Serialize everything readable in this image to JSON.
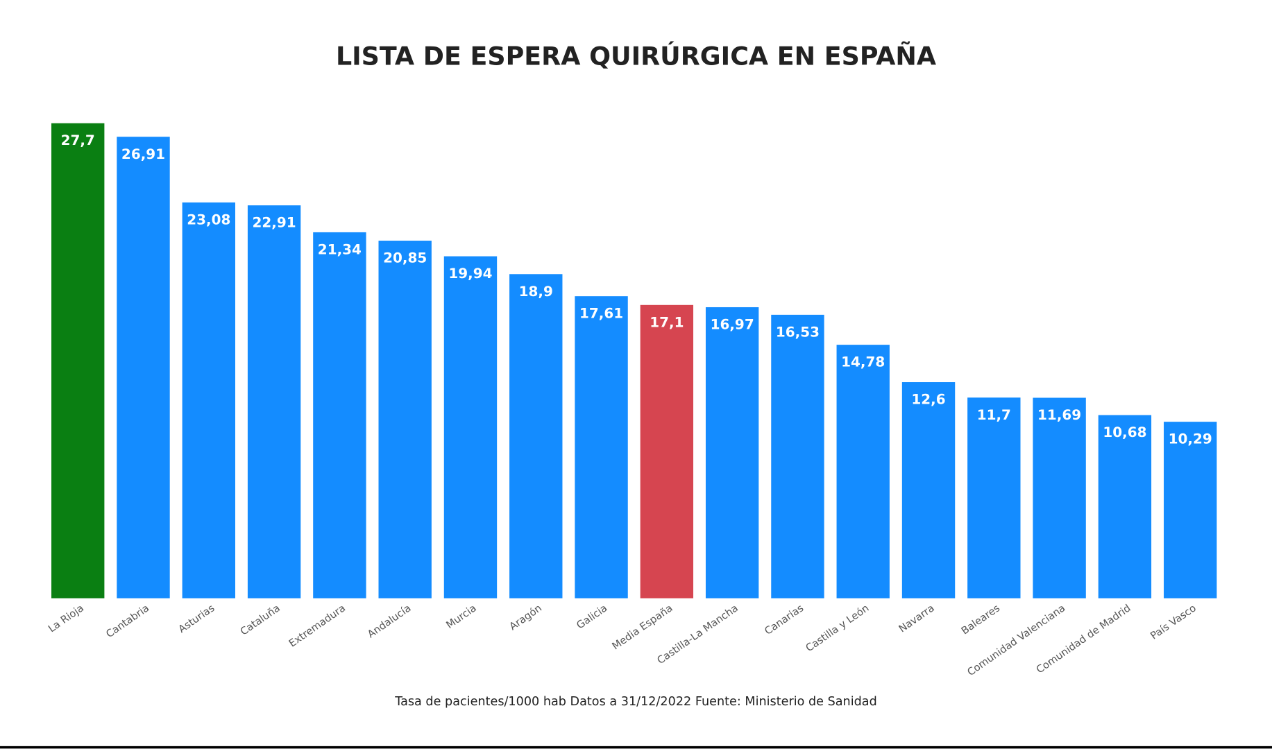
{
  "chart_data": {
    "type": "bar",
    "title": "LISTA DE ESPERA QUIRÚRGICA EN ESPAÑA",
    "footnote": "Tasa de pacientes/1000 hab Datos a 31/12/2022 Fuente: Ministerio de Sanidad",
    "categories": [
      "La Rioja",
      "Cantabria",
      "Asturias",
      "Cataluña",
      "Extremadura",
      "Andalucía",
      "Murcia",
      "Aragón",
      "Galicia",
      "Media España",
      "Castilla-La Mancha",
      "Canarias",
      "Castilla y León",
      "Navarra",
      "Baleares",
      "Comunidad Valenciana",
      "Comunidad de Madrid",
      "País Vasco"
    ],
    "values": [
      27.7,
      26.91,
      23.08,
      22.91,
      21.34,
      20.85,
      19.94,
      18.9,
      17.61,
      17.1,
      16.97,
      16.53,
      14.78,
      12.6,
      11.7,
      11.69,
      10.68,
      10.29
    ],
    "data_labels": [
      "27,7",
      "26,91",
      "23,08",
      "22,91",
      "21,34",
      "20,85",
      "19,94",
      "18,9",
      "17,61",
      "17,1",
      "16,97",
      "16,53",
      "14,78",
      "12,6",
      "11,7",
      "11,69",
      "10,68",
      "10,29"
    ],
    "colors": [
      "#0a7f12",
      "#148cff",
      "#148cff",
      "#148cff",
      "#148cff",
      "#148cff",
      "#148cff",
      "#148cff",
      "#148cff",
      "#d64550",
      "#148cff",
      "#148cff",
      "#148cff",
      "#148cff",
      "#148cff",
      "#148cff",
      "#148cff",
      "#148cff"
    ],
    "xlabel": "",
    "ylabel": "",
    "ylim": [
      0,
      27.7
    ],
    "grid": false,
    "legend": "none"
  }
}
